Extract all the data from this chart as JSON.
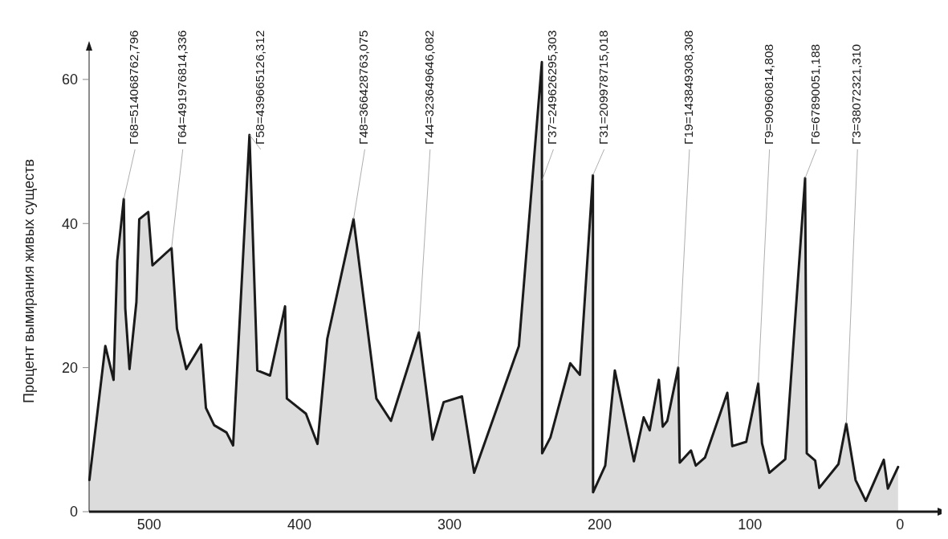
{
  "chart_data": {
    "type": "area",
    "ylabel": "Процент вымирания живых существ",
    "x": [
      539.8,
      529.2,
      523.7,
      521.3,
      516.9,
      515.9,
      513.1,
      508.5,
      506.6,
      500.6,
      497.8,
      485.1,
      481.5,
      475.3,
      465.4,
      462.2,
      456.7,
      448.5,
      444.1,
      433.2,
      428.0,
      419.5,
      409.5,
      408.3,
      395.6,
      387.9,
      381.4,
      363.9,
      348.7,
      339.0,
      320.4,
      311.3,
      303.9,
      291.7,
      283.6,
      253.8,
      238.5,
      238.3,
      232.8,
      219.6,
      213.2,
      204.5,
      204.4,
      196.3,
      189.9,
      177.2,
      170.7,
      166.7,
      160.6,
      158.0,
      155.0,
      147.7,
      146.7,
      139.2,
      136.0,
      129.9,
      115.0,
      111.7,
      102.4,
      94.4,
      91.9,
      87.0,
      76.4,
      63.2,
      62.1,
      56.5,
      53.8,
      41.0,
      35.8,
      29.6,
      22.8,
      10.8,
      8.1,
      1.3
    ],
    "values": [
      4.4,
      23.0,
      18.3,
      34.8,
      43.4,
      28.2,
      19.8,
      29.1,
      40.6,
      41.6,
      34.2,
      36.6,
      25.4,
      19.8,
      23.2,
      14.4,
      12.0,
      11.0,
      9.2,
      52.3,
      19.6,
      18.9,
      28.5,
      15.7,
      13.6,
      9.4,
      24.0,
      40.6,
      15.7,
      12.6,
      24.9,
      10.0,
      15.2,
      16.0,
      5.4,
      23.0,
      62.4,
      8.1,
      10.3,
      20.6,
      19.0,
      46.7,
      2.7,
      6.4,
      19.6,
      7.0,
      13.1,
      11.3,
      18.3,
      11.8,
      12.6,
      20.0,
      6.8,
      8.5,
      6.4,
      7.5,
      16.5,
      9.1,
      9.7,
      17.8,
      9.5,
      5.4,
      7.3,
      46.3,
      8.1,
      7.1,
      3.3,
      6.6,
      12.2,
      4.4,
      1.5,
      7.2,
      3.2,
      6.2
    ],
    "color": "#dcdcdc",
    "xlim": [
      540,
      -25
    ],
    "xticks": [
      500,
      400,
      300,
      200,
      100,
      0
    ],
    "ylim": [
      0,
      64
    ],
    "yticks": [
      0,
      20,
      40,
      60
    ],
    "annotations": [
      {
        "text": "Г68=514068762,796",
        "x": 516.9,
        "y": 43.4
      },
      {
        "text": "Г64=491976814,336",
        "x": 485.1,
        "y": 36.6
      },
      {
        "text": "Г58=439665126,312",
        "x": 433.2,
        "y": 52.3
      },
      {
        "text": "Г48=366428763,075",
        "x": 363.9,
        "y": 40.6
      },
      {
        "text": "Г44=323649646,082",
        "x": 320.4,
        "y": 24.9
      },
      {
        "text": "Г37=249626295,303",
        "x": 238.3,
        "y": 46
      },
      {
        "text": "Г31=209978715,018",
        "x": 204.5,
        "y": 46.7
      },
      {
        "text": "Г19=143849308,308",
        "x": 147.7,
        "y": 20.0
      },
      {
        "text": "Г9=90960814,808",
        "x": 94.4,
        "y": 17.8
      },
      {
        "text": "Г6=67890051,188",
        "x": 63.2,
        "y": 46.3
      },
      {
        "text": "Г3=38072321,310",
        "x": 35.8,
        "y": 12.2
      }
    ]
  }
}
